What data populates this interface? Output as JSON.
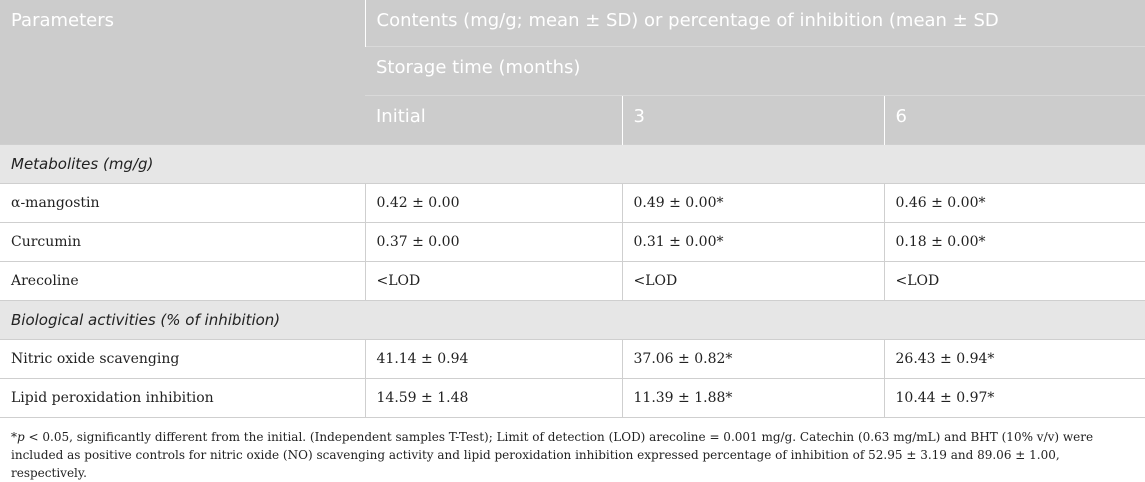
{
  "header": {
    "col1": "Parameters",
    "contents": "Contents (mg/g; mean ± SD) or percentage of inhibition (mean ± SD",
    "storage_time": "Storage time (months)",
    "periods": [
      "Initial",
      "3",
      "6"
    ]
  },
  "sections": [
    {
      "title": "Metabolites (mg/g)",
      "rows": [
        {
          "param": "α-mangostin",
          "values": [
            "0.42 ± 0.00",
            "0.49 ± 0.00*",
            "0.46 ± 0.00*"
          ]
        },
        {
          "param": "Curcumin",
          "values": [
            "0.37 ± 0.00",
            "0.31 ± 0.00*",
            "0.18 ± 0.00*"
          ]
        },
        {
          "param": "Arecoline",
          "values": [
            "<LOD",
            "<LOD",
            "<LOD"
          ]
        }
      ]
    },
    {
      "title": "Biological activities (% of inhibition)",
      "rows": [
        {
          "param": "Nitric oxide scavenging",
          "values": [
            "41.14 ± 0.94",
            "37.06 ± 0.82*",
            "26.43 ± 0.94*"
          ]
        },
        {
          "param": "Lipid peroxidation inhibition",
          "values": [
            "14.59 ± 1.48",
            "11.39 ± 1.88*",
            "10.44 ± 0.97*"
          ]
        }
      ]
    }
  ],
  "footnote": {
    "p_symbol": "*p",
    "text": " < 0.05, significantly different from the initial. (Independent samples T-Test); Limit of detection (LOD) arecoline = 0.001 mg/g. Catechin (0.63 mg/mL) and BHT (10% v/v) were included as positive controls for nitric oxide (NO) scavenging activity and lipid peroxidation inhibition expressed percentage of inhibition of 52.95 ± 3.19 and 89.06 ± 1.00, respectively."
  }
}
